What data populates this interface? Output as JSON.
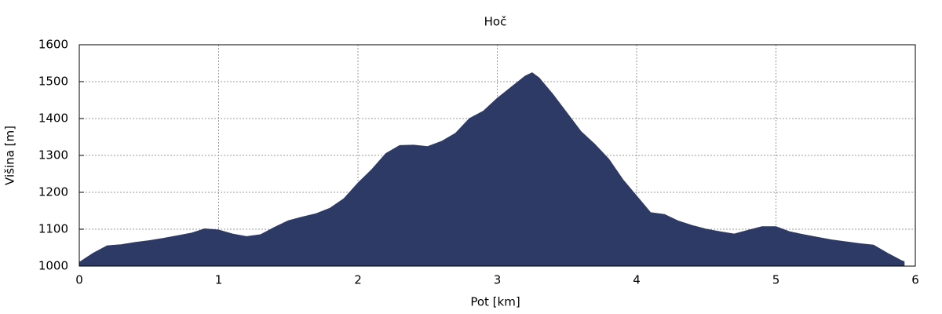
{
  "chart_data": {
    "type": "area",
    "title": "Hoč",
    "x_label": "Pot [km]",
    "y_label": "Višina [m]",
    "x": [
      0,
      0.1,
      0.2,
      0.3,
      0.4,
      0.5,
      0.6,
      0.7,
      0.8,
      0.9,
      1.0,
      1.1,
      1.2,
      1.3,
      1.4,
      1.5,
      1.6,
      1.7,
      1.8,
      1.9,
      2.0,
      2.1,
      2.2,
      2.3,
      2.4,
      2.5,
      2.6,
      2.7,
      2.8,
      2.9,
      3.0,
      3.1,
      3.2,
      3.25,
      3.3,
      3.4,
      3.5,
      3.6,
      3.7,
      3.8,
      3.9,
      4.0,
      4.1,
      4.2,
      4.3,
      4.4,
      4.5,
      4.6,
      4.7,
      4.8,
      4.9,
      5.0,
      5.1,
      5.2,
      5.3,
      5.4,
      5.5,
      5.6,
      5.7,
      5.8,
      5.9,
      5.92
    ],
    "values": [
      1010,
      1035,
      1055,
      1058,
      1064,
      1069,
      1075,
      1082,
      1089,
      1101,
      1098,
      1087,
      1080,
      1085,
      1105,
      1123,
      1133,
      1142,
      1157,
      1183,
      1225,
      1262,
      1305,
      1327,
      1328,
      1324,
      1338,
      1360,
      1400,
      1420,
      1455,
      1485,
      1515,
      1524,
      1510,
      1465,
      1415,
      1365,
      1330,
      1290,
      1235,
      1190,
      1145,
      1140,
      1122,
      1110,
      1100,
      1093,
      1087,
      1097,
      1107,
      1107,
      1093,
      1085,
      1078,
      1071,
      1066,
      1061,
      1057,
      1035,
      1015,
      1012
    ],
    "color": "#2e3a66",
    "xlim": [
      0,
      6
    ],
    "xticks": [
      0,
      1,
      2,
      3,
      4,
      5,
      6
    ],
    "ylim": [
      1000,
      1600
    ],
    "yticks": [
      1000,
      1100,
      1200,
      1300,
      1400,
      1500,
      1600
    ],
    "grid": true
  }
}
